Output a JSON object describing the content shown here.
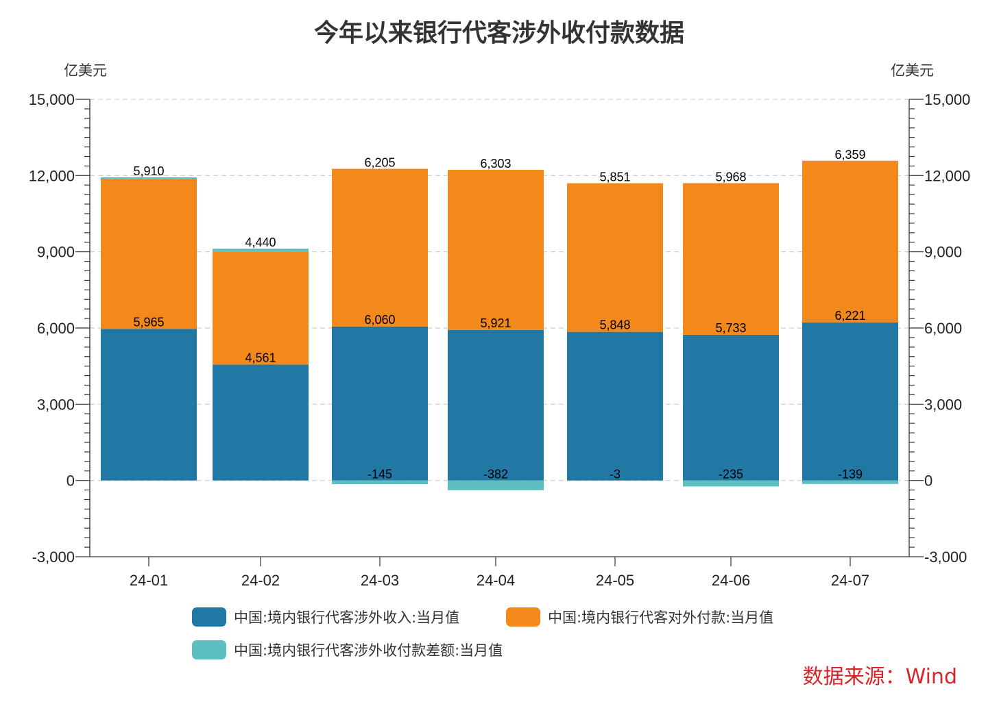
{
  "title": "今年以来银行代客涉外收付款数据",
  "left_unit": "亿美元",
  "right_unit": "亿美元",
  "source": "数据来源：Wind",
  "colors": {
    "income": "#2278a5",
    "payment": "#f4891b",
    "diff": "#5ebfc2",
    "grid": "#cccccc",
    "axis": "#333333",
    "source_text": "#d9232a"
  },
  "legend": [
    {
      "key": "income",
      "label": "中国:境内银行代客涉外收入:当月值"
    },
    {
      "key": "payment",
      "label": "中国:境内银行代客对外付款:当月值"
    },
    {
      "key": "diff",
      "label": "中国:境内银行代客涉外收付款差额:当月值"
    }
  ],
  "chart_data": {
    "type": "bar",
    "stacked": true,
    "categories": [
      "24-01",
      "24-02",
      "24-03",
      "24-04",
      "24-05",
      "24-06",
      "24-07"
    ],
    "series": [
      {
        "key": "income",
        "name": "中国:境内银行代客涉外收入:当月值",
        "values": [
          5965,
          4561,
          6060,
          5921,
          5848,
          5733,
          6221
        ]
      },
      {
        "key": "payment",
        "name": "中国:境内银行代客对外付款:当月值",
        "values": [
          5910,
          4440,
          6205,
          6303,
          5851,
          5968,
          6359
        ]
      },
      {
        "key": "diff",
        "name": "中国:境内银行代客涉外收付款差额:当月值",
        "values": [
          55,
          121,
          -145,
          -382,
          -3,
          -235,
          -139
        ]
      }
    ],
    "data_labels": {
      "income": [
        "5,965",
        "4,561",
        "6,060",
        "5,921",
        "5,848",
        "5,733",
        "6,221"
      ],
      "payment": [
        "5,910",
        "4,440",
        "6,205",
        "6,303",
        "5,851",
        "5,968",
        "6,359"
      ],
      "diff": [
        "",
        "",
        "-145",
        "-382",
        "-3",
        "-235",
        "-139"
      ]
    },
    "ylim": [
      -3000,
      15000
    ],
    "yticks": [
      -3000,
      0,
      3000,
      6000,
      9000,
      12000,
      15000
    ],
    "ytick_labels": [
      "-3,000",
      "0",
      "3,000",
      "6,000",
      "9,000",
      "12,000",
      "15,000"
    ],
    "grid": true,
    "legend_position": "bottom"
  }
}
